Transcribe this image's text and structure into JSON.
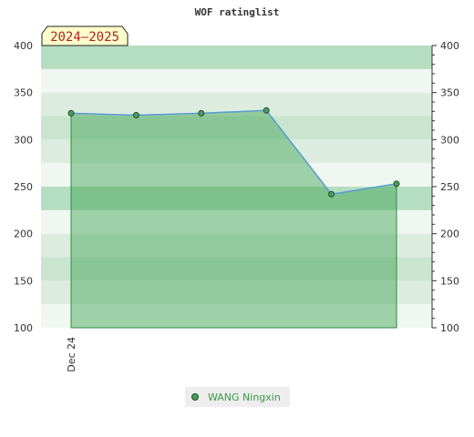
{
  "chart_data": {
    "type": "area",
    "title": "WOF ratinglist",
    "badge": "2024–2025",
    "x_tick_labels": [
      "Dec 24"
    ],
    "y_ticks": [
      100,
      150,
      200,
      250,
      300,
      350,
      400
    ],
    "ylim": [
      100,
      400
    ],
    "grid": true,
    "legend_position": "bottom",
    "series": [
      {
        "name": "WANG Ningxin",
        "values": [
          328,
          326,
          328,
          331,
          242,
          253
        ]
      }
    ],
    "colors": {
      "line": "#5b9bd5",
      "fill": "#3aa24e",
      "edge": "#2e8b3e",
      "marker": "#4c9e5c",
      "marker_edge": "#1d4f26",
      "band_colors": [
        "#f0f7f1",
        "#dcede0",
        "#c9e5d0",
        "#b5ddc0"
      ]
    }
  }
}
